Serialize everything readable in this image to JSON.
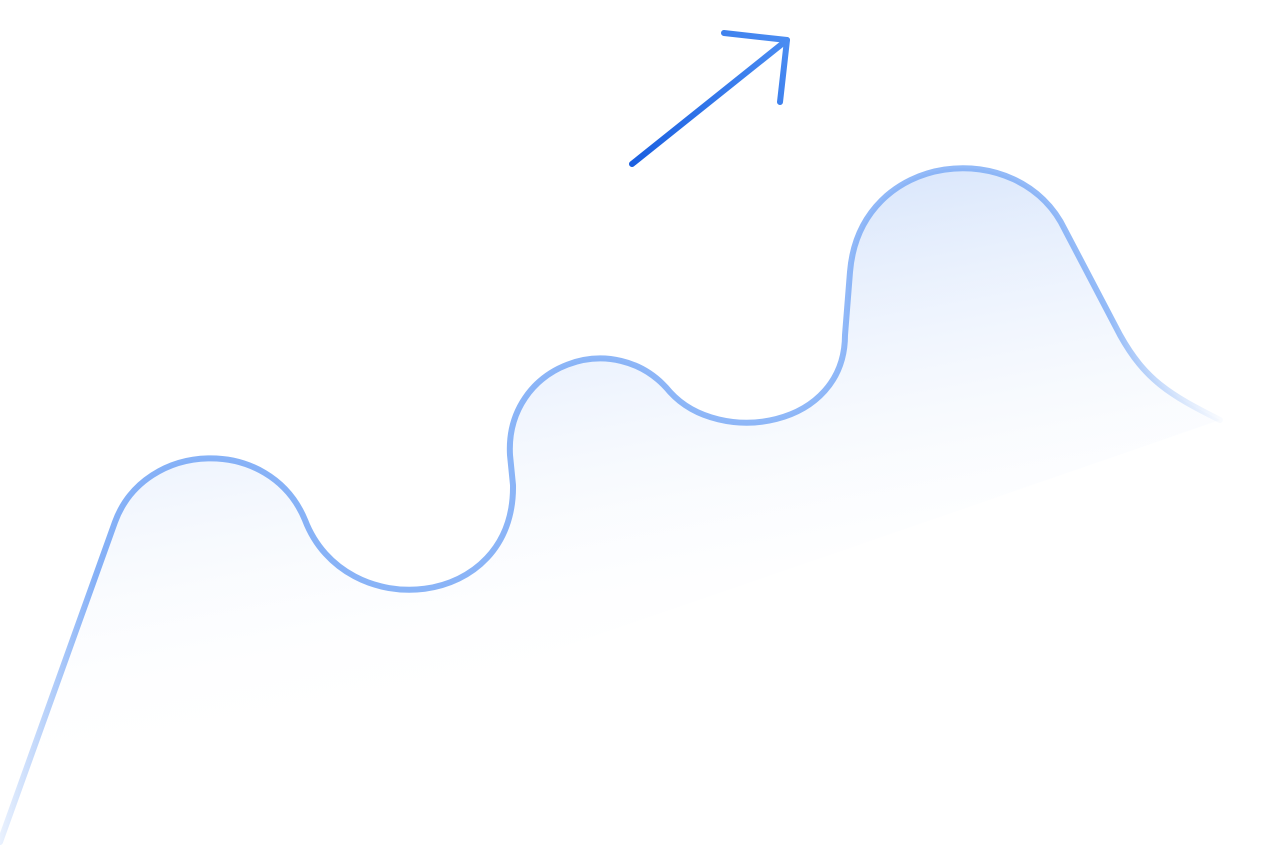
{
  "illustration": {
    "icon": "trend-up-arrow-icon",
    "wave": "rising-wave-graphic",
    "colors": {
      "arrow": "#1a66e8",
      "arrow_light": "#4a8cf2",
      "wave_stroke": "#78a8f6",
      "wave_fill": "#dce8fc",
      "background": "#ffffff"
    }
  }
}
